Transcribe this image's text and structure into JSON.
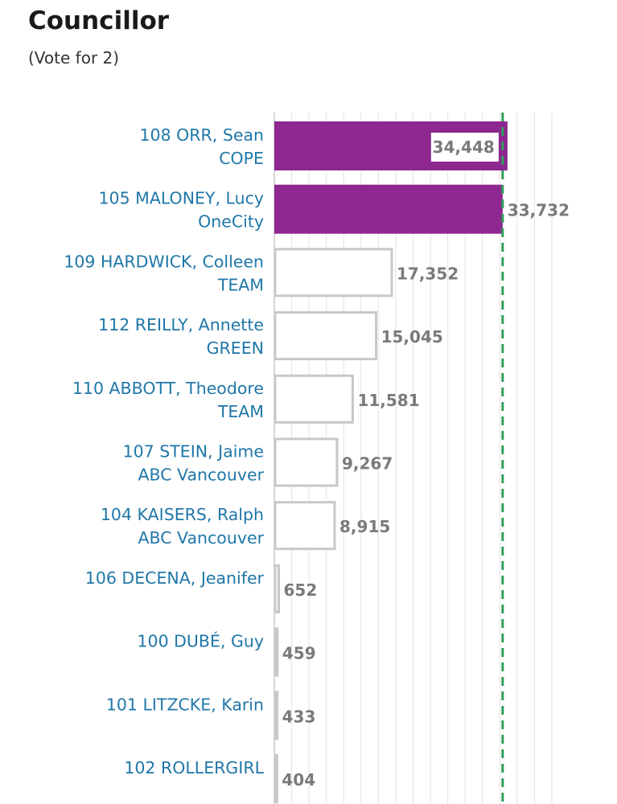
{
  "header": {
    "title": "Councillor",
    "subtitle": "(Vote for 2)"
  },
  "colors": {
    "elected_fill": "#8e278f",
    "other_fill": "#ffffff",
    "other_stroke": "#c8c8c8",
    "threshold_line": "#2e9e5b",
    "name_text": "#1f77a8",
    "value_text": "#7a7a7a"
  },
  "chart_data": {
    "type": "bar",
    "orientation": "horizontal",
    "title": "Councillor",
    "subtitle": "(Vote for 2)",
    "threshold_line": {
      "value": 33732,
      "style": "dashed"
    },
    "xlim": [
      0,
      41000
    ],
    "grid": true,
    "legend": "none",
    "candidates": [
      {
        "name": "108 ORR, Sean",
        "party": "COPE",
        "votes": 34448,
        "label": "34,448",
        "elected": true
      },
      {
        "name": "105 MALONEY, Lucy",
        "party": "OneCity",
        "votes": 33732,
        "label": "33,732",
        "elected": true
      },
      {
        "name": "109 HARDWICK, Colleen",
        "party": "TEAM",
        "votes": 17352,
        "label": "17,352",
        "elected": false
      },
      {
        "name": "112 REILLY, Annette",
        "party": "GREEN",
        "votes": 15045,
        "label": "15,045",
        "elected": false
      },
      {
        "name": "110 ABBOTT, Theodore",
        "party": "TEAM",
        "votes": 11581,
        "label": "11,581",
        "elected": false
      },
      {
        "name": "107 STEIN, Jaime",
        "party": "ABC Vancouver",
        "votes": 9267,
        "label": "9,267",
        "elected": false
      },
      {
        "name": "104 KAISERS, Ralph",
        "party": "ABC Vancouver",
        "votes": 8915,
        "label": "8,915",
        "elected": false
      },
      {
        "name": "106 DECENA, Jeanifer",
        "party": "",
        "votes": 652,
        "label": "652",
        "elected": false
      },
      {
        "name": "100 DUBÉ, Guy",
        "party": "",
        "votes": 459,
        "label": "459",
        "elected": false
      },
      {
        "name": "101 LITZCKE, Karin",
        "party": "",
        "votes": 433,
        "label": "433",
        "elected": false
      },
      {
        "name": "102 ROLLERGIRL",
        "party": "",
        "votes": 404,
        "label": "404",
        "elected": false
      }
    ]
  }
}
